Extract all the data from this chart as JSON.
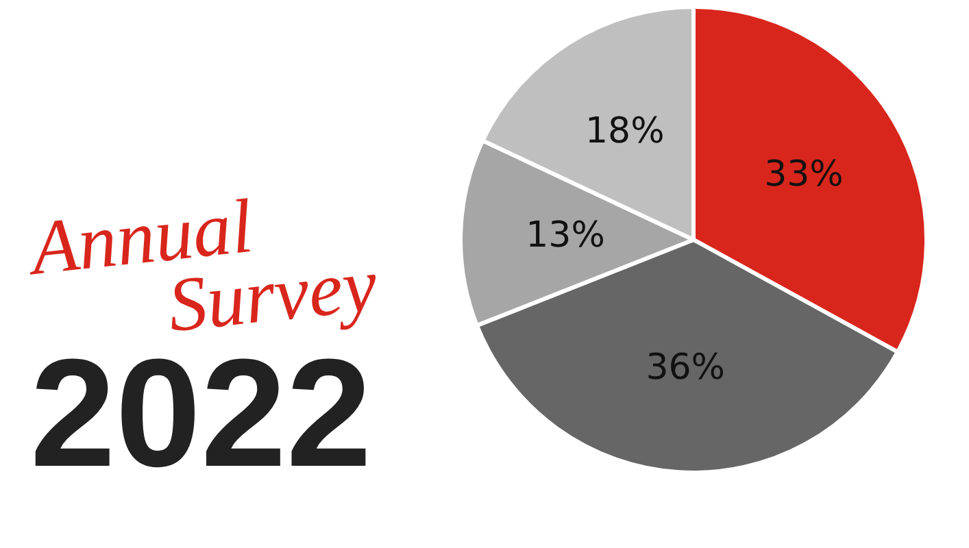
{
  "chart_data": {
    "type": "pie",
    "title": "Annual Survey",
    "subtitle": "2022",
    "categories": [
      null,
      null,
      null,
      null
    ],
    "values": [
      33,
      36,
      13,
      18
    ],
    "colors": [
      "#d9261c",
      "#666666",
      "#a6a6a6",
      "#bfbfbf"
    ],
    "value_labels": [
      "33%",
      "36%",
      "13%",
      "18%"
    ]
  }
}
